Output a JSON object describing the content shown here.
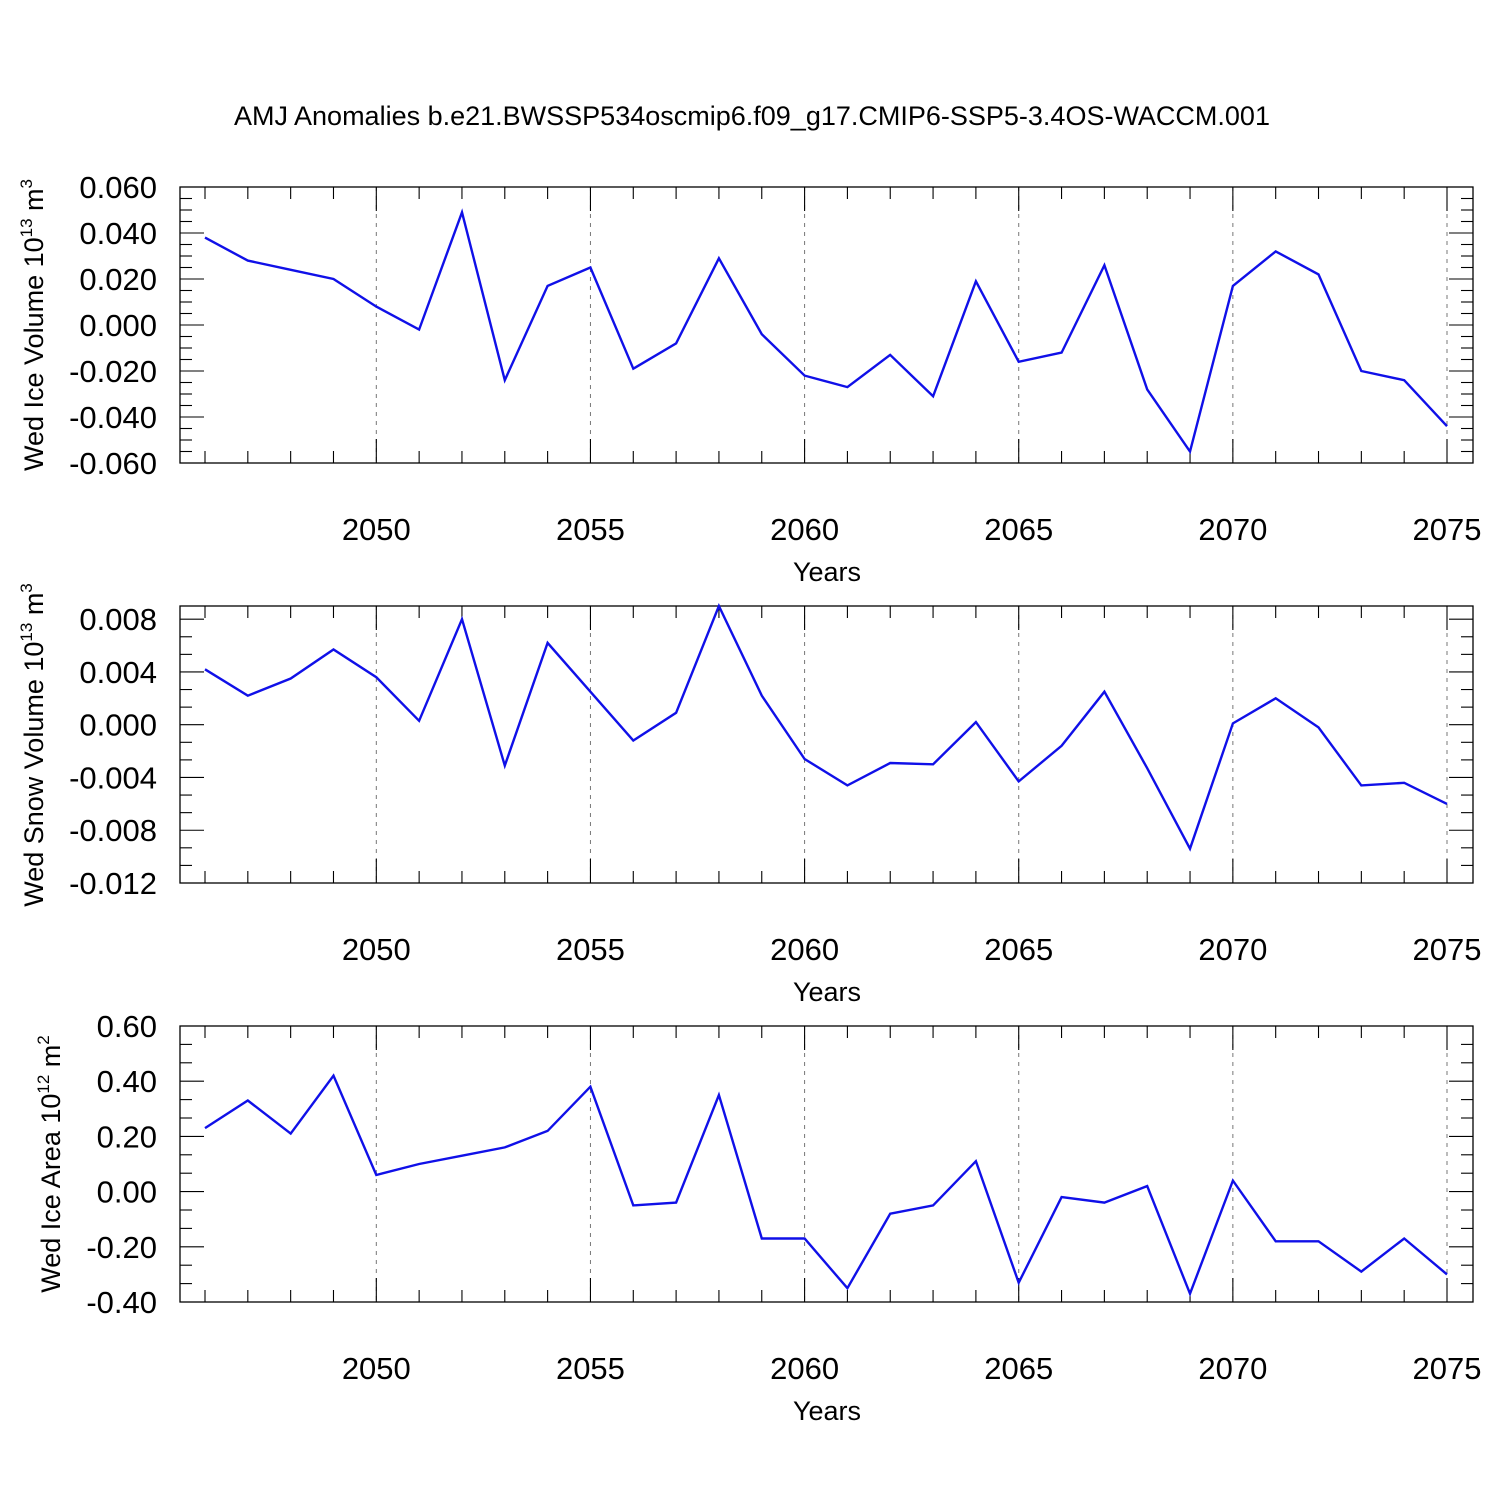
{
  "figure": {
    "title": "AMJ Anomalies b.e21.BWSSP534oscmip6.f09_g17.CMIP6-SSP5-3.4OS-WACCM.001"
  },
  "chart_data": [
    {
      "type": "line",
      "ylabel_main": "Wed Ice Volume 10",
      "ylabel_sup": "13",
      "ylabel_unit": " m",
      "ylabel_unit_sup": "3",
      "xlabel": "Years",
      "xlim": [
        2046,
        2075
      ],
      "ylim": [
        -0.06,
        0.06
      ],
      "x_ticks": [
        2050,
        2055,
        2060,
        2065,
        2070,
        2075
      ],
      "x_tick_labels": [
        "2050",
        "2055",
        "2060",
        "2065",
        "2070",
        "2075"
      ],
      "y_ticks": [
        -0.06,
        -0.04,
        -0.02,
        0.0,
        0.02,
        0.04,
        0.06
      ],
      "y_tick_labels": [
        "-0.060",
        "-0.040",
        "-0.020",
        "0.000",
        "0.020",
        "0.040",
        "0.060"
      ],
      "grid": "dashed vertical at major x ticks",
      "line_color": "#1010e8",
      "x": [
        2046,
        2047,
        2048,
        2049,
        2050,
        2051,
        2052,
        2053,
        2054,
        2055,
        2056,
        2057,
        2058,
        2059,
        2060,
        2061,
        2062,
        2063,
        2064,
        2065,
        2066,
        2067,
        2068,
        2069,
        2070,
        2071,
        2072,
        2073,
        2074,
        2075
      ],
      "values": [
        0.038,
        0.028,
        0.024,
        0.02,
        0.008,
        -0.002,
        0.049,
        -0.024,
        0.017,
        0.025,
        -0.019,
        -0.008,
        0.029,
        -0.004,
        -0.022,
        -0.027,
        -0.013,
        -0.031,
        0.019,
        -0.016,
        -0.012,
        0.026,
        -0.028,
        -0.055,
        0.017,
        0.032,
        0.022,
        -0.02,
        -0.024,
        -0.044
      ]
    },
    {
      "type": "line",
      "ylabel_main": "Wed Snow Volume 10",
      "ylabel_sup": "13",
      "ylabel_unit": " m",
      "ylabel_unit_sup": "3",
      "xlabel": "Years",
      "xlim": [
        2046,
        2075
      ],
      "ylim": [
        -0.012,
        0.009
      ],
      "x_ticks": [
        2050,
        2055,
        2060,
        2065,
        2070,
        2075
      ],
      "x_tick_labels": [
        "2050",
        "2055",
        "2060",
        "2065",
        "2070",
        "2075"
      ],
      "y_ticks": [
        -0.012,
        -0.008,
        -0.004,
        0.0,
        0.004,
        0.008
      ],
      "y_tick_labels": [
        "-0.012",
        "-0.008",
        "-0.004",
        "0.000",
        "0.004",
        "0.008"
      ],
      "grid": "dashed vertical at major x ticks",
      "line_color": "#1010e8",
      "x": [
        2046,
        2047,
        2048,
        2049,
        2050,
        2051,
        2052,
        2053,
        2054,
        2055,
        2056,
        2057,
        2058,
        2059,
        2060,
        2061,
        2062,
        2063,
        2064,
        2065,
        2066,
        2067,
        2068,
        2069,
        2070,
        2071,
        2072,
        2073,
        2074,
        2075
      ],
      "values": [
        0.0042,
        0.0022,
        0.0035,
        0.0057,
        0.0036,
        0.0003,
        0.008,
        -0.0031,
        0.0062,
        0.0025,
        -0.0012,
        0.0009,
        0.009,
        0.0022,
        -0.0026,
        -0.0046,
        -0.0029,
        -0.003,
        0.0002,
        -0.0043,
        -0.0016,
        0.0025,
        -0.0033,
        -0.0094,
        0.0001,
        0.002,
        -0.0002,
        -0.0046,
        -0.0044,
        -0.006
      ]
    },
    {
      "type": "line",
      "ylabel_main": "Wed Ice Area 10",
      "ylabel_sup": "12",
      "ylabel_unit": " m",
      "ylabel_unit_sup": "2",
      "xlabel": "Years",
      "xlim": [
        2046,
        2075
      ],
      "ylim": [
        -0.4,
        0.6
      ],
      "x_ticks": [
        2050,
        2055,
        2060,
        2065,
        2070,
        2075
      ],
      "x_tick_labels": [
        "2050",
        "2055",
        "2060",
        "2065",
        "2070",
        "2075"
      ],
      "y_ticks": [
        -0.4,
        -0.2,
        0.0,
        0.2,
        0.4,
        0.6
      ],
      "y_tick_labels": [
        "-0.40",
        "-0.20",
        "0.00",
        "0.20",
        "0.40",
        "0.60"
      ],
      "grid": "dashed vertical at major x ticks",
      "line_color": "#1010e8",
      "x": [
        2046,
        2047,
        2048,
        2049,
        2050,
        2051,
        2052,
        2053,
        2054,
        2055,
        2056,
        2057,
        2058,
        2059,
        2060,
        2061,
        2062,
        2063,
        2064,
        2065,
        2066,
        2067,
        2068,
        2069,
        2070,
        2071,
        2072,
        2073,
        2074,
        2075
      ],
      "values": [
        0.23,
        0.33,
        0.21,
        0.42,
        0.06,
        0.1,
        0.13,
        0.16,
        0.22,
        0.38,
        -0.05,
        -0.04,
        0.35,
        -0.17,
        -0.17,
        -0.35,
        -0.08,
        -0.05,
        0.11,
        -0.33,
        -0.02,
        -0.04,
        0.02,
        -0.37,
        0.04,
        -0.18,
        -0.18,
        -0.29,
        -0.17,
        -0.3
      ]
    }
  ]
}
